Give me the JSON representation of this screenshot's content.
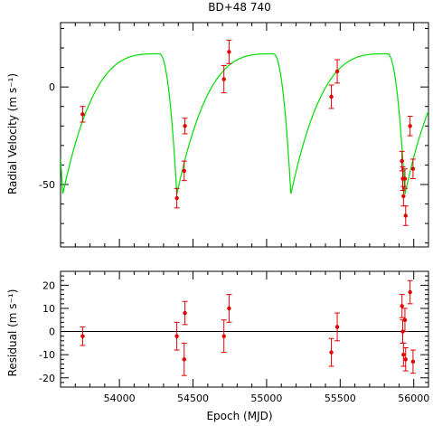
{
  "chart_data": [
    {
      "type": "scatter",
      "title": "BD+48 740",
      "xlabel": "",
      "ylabel": "Radial Velocity (m s⁻¹)",
      "xlim": [
        53600,
        56100
      ],
      "ylim": [
        -82,
        33
      ],
      "yticks": [
        0,
        -50
      ],
      "grid": false,
      "model_curve": {
        "color": "#00dd00",
        "periastron_epochs": [
          54390,
          55165,
          55940
        ],
        "period": 775,
        "min_velocity": -55,
        "max_velocity": 17,
        "max_epoch_offset": -120
      },
      "series": [
        {
          "color": "#e00000",
          "points": [
            {
              "x": 53750,
              "y": -14,
              "err": 4
            },
            {
              "x": 54390,
              "y": -57,
              "err": 5
            },
            {
              "x": 54440,
              "y": -43,
              "err": 5
            },
            {
              "x": 54445,
              "y": -20,
              "err": 4
            },
            {
              "x": 54710,
              "y": 4,
              "err": 7
            },
            {
              "x": 54745,
              "y": 18,
              "err": 6
            },
            {
              "x": 55440,
              "y": -5,
              "err": 6
            },
            {
              "x": 55480,
              "y": 8,
              "err": 6
            },
            {
              "x": 55920,
              "y": -38,
              "err": 5
            },
            {
              "x": 55925,
              "y": -47,
              "err": 6
            },
            {
              "x": 55930,
              "y": -56,
              "err": 5
            },
            {
              "x": 55940,
              "y": -47,
              "err": 5
            },
            {
              "x": 55945,
              "y": -66,
              "err": 5
            },
            {
              "x": 55975,
              "y": -20,
              "err": 5
            },
            {
              "x": 55995,
              "y": -42,
              "err": 5
            }
          ]
        }
      ]
    },
    {
      "type": "scatter",
      "title": "",
      "xlabel": "Epoch (MJD)",
      "ylabel": "Residual (m s⁻¹)",
      "xlim": [
        53600,
        56100
      ],
      "ylim": [
        -24,
        26
      ],
      "xticks": [
        54000,
        54500,
        55000,
        55500,
        56000
      ],
      "yticks": [
        20,
        10,
        0,
        -10,
        -20
      ],
      "zero_line": true,
      "grid": false,
      "series": [
        {
          "color": "#e00000",
          "points": [
            {
              "x": 53750,
              "y": -2,
              "err": 4
            },
            {
              "x": 54390,
              "y": -2,
              "err": 6
            },
            {
              "x": 54440,
              "y": -12,
              "err": 7
            },
            {
              "x": 54445,
              "y": 8,
              "err": 5
            },
            {
              "x": 54710,
              "y": -2,
              "err": 7
            },
            {
              "x": 54745,
              "y": 10,
              "err": 6
            },
            {
              "x": 55440,
              "y": -9,
              "err": 6
            },
            {
              "x": 55480,
              "y": 2,
              "err": 6
            },
            {
              "x": 55920,
              "y": 11,
              "err": 5
            },
            {
              "x": 55925,
              "y": 0,
              "err": 5
            },
            {
              "x": 55930,
              "y": -10,
              "err": 5
            },
            {
              "x": 55940,
              "y": 5,
              "err": 5
            },
            {
              "x": 55945,
              "y": -12,
              "err": 5
            },
            {
              "x": 55975,
              "y": 17,
              "err": 5
            },
            {
              "x": 55995,
              "y": -13,
              "err": 5
            }
          ]
        }
      ]
    }
  ]
}
